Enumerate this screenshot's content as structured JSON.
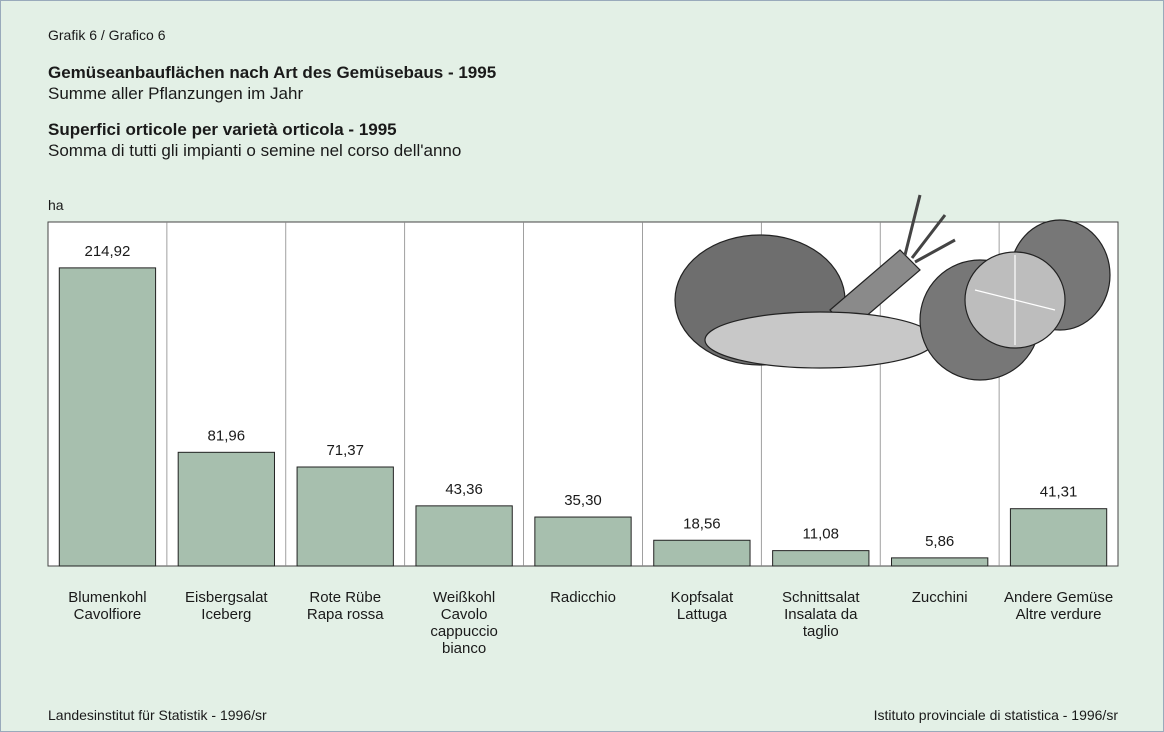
{
  "header": {
    "label": "Grafik 6 / Grafico 6",
    "title_de": "Gemüseanbauflächen nach Art des Gemüsebaus - 1995",
    "subtitle_de": "Summe aller Pflanzungen im Jahr",
    "title_it": "Superfici orticole per varietà orticola - 1995",
    "subtitle_it": "Somma di tutti gli impianti o semine nel corso dell'anno"
  },
  "footer": {
    "left": "Landesinstitut für Statistik - 1996/sr",
    "right": "Istituto provinciale di statistica - 1996/sr"
  },
  "chart_data": {
    "type": "bar",
    "y_label": "ha",
    "categories": [
      [
        "Blumenkohl",
        "Cavolfiore"
      ],
      [
        "Eisbergsalat",
        "Iceberg"
      ],
      [
        "Rote Rübe",
        "Rapa rossa"
      ],
      [
        "Weißkohl",
        "Cavolo",
        "cappuccio",
        "bianco"
      ],
      [
        "Radicchio"
      ],
      [
        "Kopfsalat",
        "Lattuga"
      ],
      [
        "Schnittsalat",
        "Insalata da",
        "taglio"
      ],
      [
        "Zucchini"
      ],
      [
        "Andere Gemüse",
        "Altre verdure"
      ]
    ],
    "values": [
      214.92,
      81.96,
      71.37,
      43.36,
      35.3,
      18.56,
      11.08,
      5.86,
      41.31
    ],
    "value_labels": [
      "214,92",
      "81,96",
      "71,37",
      "43,36",
      "35,30",
      "18,56",
      "11,08",
      "5,86",
      "41,31"
    ],
    "color": "#a7bfae",
    "ylim": [
      0,
      248
    ]
  }
}
